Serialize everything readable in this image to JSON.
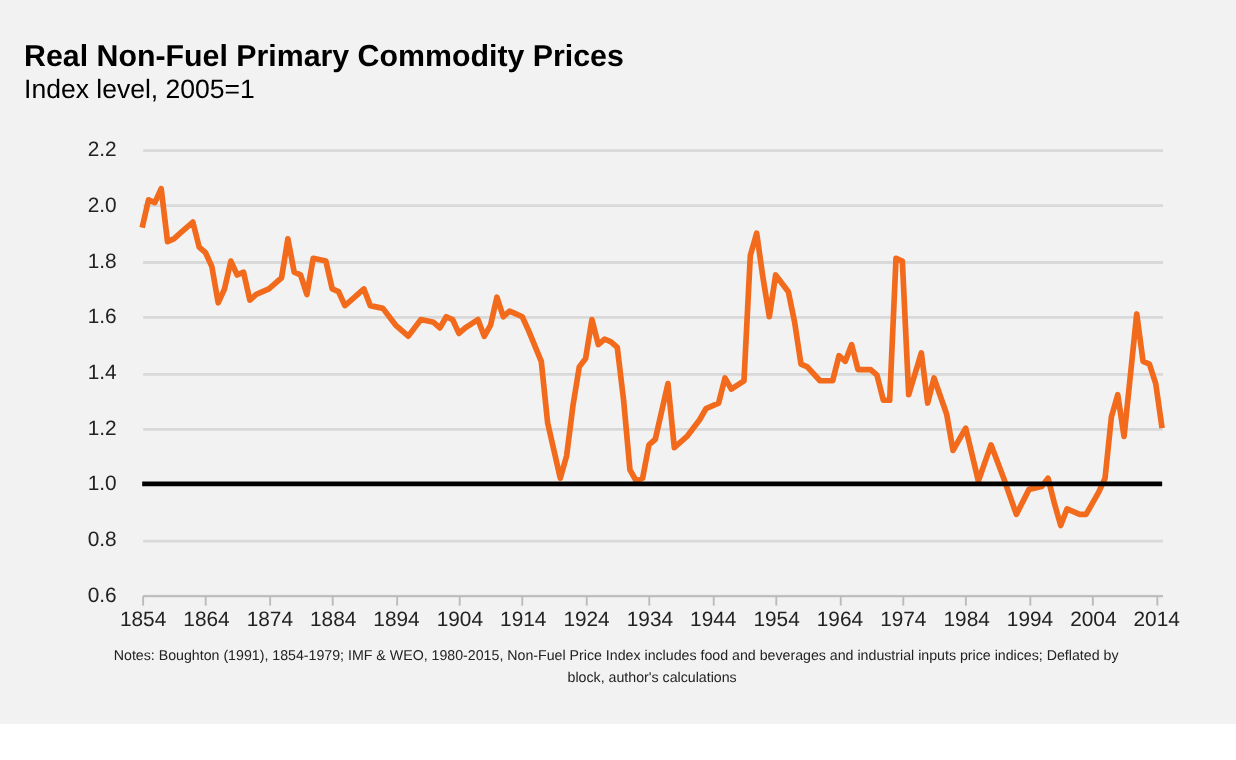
{
  "chart_data": {
    "type": "line",
    "title": "Real Non-Fuel Primary Commodity Prices",
    "subtitle": "Index level, 2005=1",
    "x": [
      1854,
      1855,
      1856,
      1857,
      1858,
      1859,
      1860,
      1861,
      1862,
      1863,
      1864,
      1865,
      1866,
      1867,
      1868,
      1869,
      1870,
      1871,
      1872,
      1874,
      1875,
      1876,
      1877,
      1878,
      1879,
      1880,
      1881,
      1883,
      1884,
      1885,
      1886,
      1887,
      1889,
      1890,
      1892,
      1894,
      1896,
      1897,
      1898,
      1900,
      1901,
      1902,
      1903,
      1904,
      1905,
      1907,
      1908,
      1909,
      1910,
      1911,
      1912,
      1913,
      1914,
      1915,
      1917,
      1918,
      1919,
      1920,
      1921,
      1922,
      1923,
      1924,
      1925,
      1926,
      1927,
      1928,
      1929,
      1930,
      1931,
      1932,
      1933,
      1934,
      1935,
      1937,
      1938,
      1940,
      1942,
      1943,
      1945,
      1946,
      1947,
      1949,
      1950,
      1951,
      1952,
      1953,
      1954,
      1956,
      1957,
      1958,
      1959,
      1961,
      1963,
      1964,
      1965,
      1966,
      1967,
      1969,
      1970,
      1971,
      1972,
      1973,
      1974,
      1975,
      1977,
      1978,
      1979,
      1981,
      1982,
      1984,
      1986,
      1988,
      1990,
      1992,
      1994,
      1996,
      1997,
      1998,
      1999,
      2000,
      2002,
      2003,
      2005,
      2006,
      2007,
      2008,
      2009,
      2011,
      2012,
      2013,
      2014,
      2015
    ],
    "values": [
      1.92,
      2.02,
      2.01,
      2.06,
      1.87,
      1.88,
      1.9,
      1.92,
      1.94,
      1.85,
      1.83,
      1.78,
      1.65,
      1.7,
      1.8,
      1.75,
      1.76,
      1.66,
      1.68,
      1.7,
      1.72,
      1.74,
      1.88,
      1.76,
      1.75,
      1.68,
      1.81,
      1.8,
      1.7,
      1.69,
      1.64,
      1.66,
      1.7,
      1.64,
      1.63,
      1.57,
      1.53,
      1.56,
      1.59,
      1.58,
      1.56,
      1.6,
      1.59,
      1.54,
      1.56,
      1.59,
      1.53,
      1.57,
      1.67,
      1.6,
      1.62,
      1.61,
      1.6,
      1.55,
      1.44,
      1.22,
      1.12,
      1.02,
      1.1,
      1.28,
      1.42,
      1.45,
      1.59,
      1.5,
      1.52,
      1.51,
      1.49,
      1.3,
      1.05,
      1.01,
      1.02,
      1.14,
      1.16,
      1.36,
      1.13,
      1.17,
      1.23,
      1.27,
      1.29,
      1.38,
      1.34,
      1.37,
      1.82,
      1.9,
      1.74,
      1.6,
      1.75,
      1.69,
      1.58,
      1.43,
      1.42,
      1.37,
      1.37,
      1.46,
      1.44,
      1.5,
      1.41,
      1.41,
      1.39,
      1.3,
      1.3,
      1.81,
      1.8,
      1.32,
      1.47,
      1.29,
      1.38,
      1.25,
      1.12,
      1.2,
      1.01,
      1.14,
      1.02,
      0.89,
      0.98,
      0.99,
      1.02,
      0.93,
      0.85,
      0.91,
      0.89,
      0.89,
      0.97,
      1.02,
      1.24,
      1.32,
      1.17,
      1.61,
      1.44,
      1.43,
      1.36,
      1.2
    ],
    "color": "#f26b1d",
    "xlim": [
      1854,
      2015
    ],
    "xticks": [
      1854,
      1864,
      1874,
      1884,
      1894,
      1904,
      1914,
      1924,
      1934,
      1944,
      1954,
      1964,
      1974,
      1984,
      1994,
      2004,
      2014
    ],
    "ylim": [
      0.6,
      2.2
    ],
    "yticks": [
      {
        "value": 0.6,
        "label": "0.6"
      },
      {
        "value": 0.8,
        "label": "0.8"
      },
      {
        "value": 1.0,
        "label": "1.0"
      },
      {
        "value": 1.2,
        "label": "1.2"
      },
      {
        "value": 1.4,
        "label": "1.4"
      },
      {
        "value": 1.6,
        "label": "1.6"
      },
      {
        "value": 1.8,
        "label": "1.8"
      },
      {
        "value": 2.0,
        "label": "2.0"
      },
      {
        "value": 2.2,
        "label": "2.2"
      }
    ],
    "grid": "y",
    "marker": "none",
    "line_style": "solid",
    "ref_lines": [
      {
        "axis": "y",
        "value": 1.0,
        "color": "#000000"
      }
    ],
    "annotations": [
      "Notes: Boughton (1991), 1854-1979; IMF & WEO, 1980-2015, Non-Fuel Price Index includes food and beverages and industrial inputs price indices; Deflated by",
      "block, author's calculations"
    ]
  }
}
